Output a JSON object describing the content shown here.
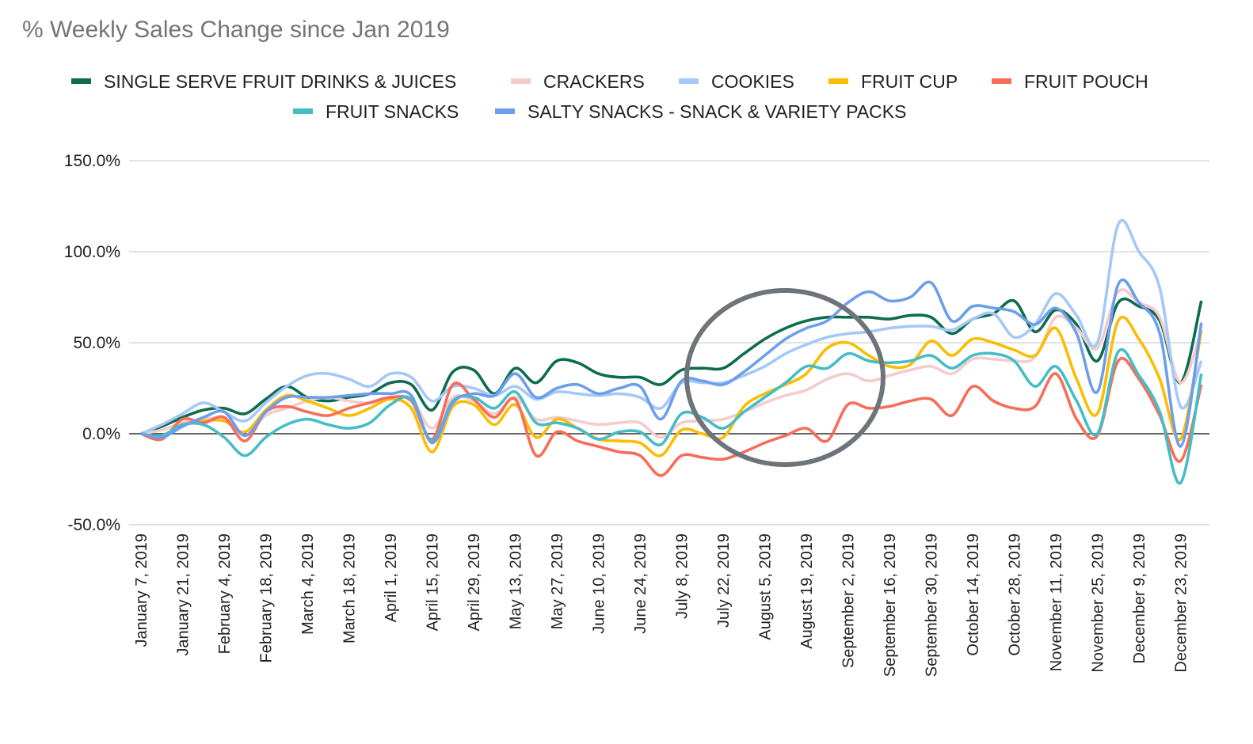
{
  "chart_data": {
    "type": "line",
    "title": "% Weekly Sales Change since Jan 2019",
    "xlabel": "",
    "ylabel": "",
    "ylim": [
      -50,
      150
    ],
    "y_ticks": [
      "150.0%",
      "100.0%",
      "50.0%",
      "0.0%",
      "-50.0%"
    ],
    "y_tick_values": [
      150,
      100,
      50,
      0,
      -50
    ],
    "grid": true,
    "legend_position": "top",
    "x": [
      "January 7, 2019",
      "January 14, 2019",
      "January 21, 2019",
      "January 28, 2019",
      "February 4, 2019",
      "February 11, 2019",
      "February 18, 2019",
      "February 25, 2019",
      "March 4, 2019",
      "March 11, 2019",
      "March 18, 2019",
      "March 25, 2019",
      "April 1, 2019",
      "April 8, 2019",
      "April 15, 2019",
      "April 22, 2019",
      "April 29, 2019",
      "May 6, 2019",
      "May 13, 2019",
      "May 20, 2019",
      "May 27, 2019",
      "June 3, 2019",
      "June 10, 2019",
      "June 17, 2019",
      "June 24, 2019",
      "July 1, 2019",
      "July 8, 2019",
      "July 15, 2019",
      "July 22, 2019",
      "July 29, 2019",
      "August 5, 2019",
      "August 12, 2019",
      "August 19, 2019",
      "August 26, 2019",
      "September 2, 2019",
      "September 9, 2019",
      "September 16, 2019",
      "September 23, 2019",
      "September 30, 2019",
      "October 7, 2019",
      "October 14, 2019",
      "October 21, 2019",
      "October 28, 2019",
      "November 4, 2019",
      "November 11, 2019",
      "November 18, 2019",
      "November 25, 2019",
      "December 2, 2019",
      "December 9, 2019",
      "December 16, 2019",
      "December 23, 2019",
      "December 30, 2019"
    ],
    "x_tick_labels": [
      "January 7, 2019",
      "January 21, 2019",
      "February 4, 2019",
      "February 18, 2019",
      "March 4, 2019",
      "March 18, 2019",
      "April 1, 2019",
      "April 15, 2019",
      "April 29, 2019",
      "May 13, 2019",
      "May 27, 2019",
      "June 10, 2019",
      "June 24, 2019",
      "July 8, 2019",
      "July 22, 2019",
      "August 5, 2019",
      "August 19, 2019",
      "September 2, 2019",
      "September 16, 2019",
      "September 30, 2019",
      "October 14, 2019",
      "October 28, 2019",
      "November 11, 2019",
      "November 25, 2019",
      "December 9, 2019",
      "December 23, 2019"
    ],
    "series": [
      {
        "name": "SINGLE SERVE FRUIT DRINKS & JUICES",
        "color": "#0d6b4e",
        "values": [
          0,
          4,
          9,
          13,
          14,
          11,
          19,
          26,
          20,
          18,
          20,
          22,
          28,
          27,
          13,
          34,
          35,
          22,
          36,
          28,
          40,
          39,
          33,
          31,
          31,
          27,
          35,
          36,
          36,
          44,
          52,
          58,
          62,
          64,
          64,
          64,
          63,
          65,
          64,
          55,
          63,
          66,
          73,
          56,
          68,
          60,
          40,
          72,
          70,
          62,
          28,
          73
        ]
      },
      {
        "name": "CRACKERS",
        "color": "#f4cccc",
        "values": [
          0,
          2,
          6,
          8,
          8,
          -1,
          10,
          14,
          18,
          20,
          18,
          17,
          20,
          19,
          3,
          20,
          18,
          11,
          20,
          8,
          9,
          7,
          5,
          6,
          6,
          -2,
          6,
          7,
          8,
          12,
          17,
          21,
          24,
          30,
          33,
          29,
          32,
          35,
          37,
          33,
          41,
          41,
          40,
          42,
          64,
          58,
          47,
          78,
          72,
          64,
          28,
          57
        ]
      },
      {
        "name": "COOKIES",
        "color": "#a4c8f8",
        "values": [
          0,
          5,
          11,
          17,
          12,
          7,
          17,
          26,
          32,
          33,
          30,
          26,
          33,
          31,
          18,
          26,
          25,
          21,
          26,
          19,
          23,
          22,
          21,
          22,
          20,
          14,
          28,
          28,
          28,
          32,
          37,
          44,
          49,
          53,
          55,
          56,
          58,
          59,
          59,
          57,
          63,
          66,
          53,
          60,
          77,
          65,
          50,
          115,
          100,
          80,
          15,
          40
        ]
      },
      {
        "name": "FRUIT CUP",
        "color": "#fbbc04",
        "values": [
          0,
          -1,
          5,
          7,
          7,
          1,
          13,
          21,
          18,
          14,
          10,
          14,
          19,
          14,
          -10,
          15,
          16,
          5,
          16,
          -2,
          8,
          3,
          -3,
          -4,
          -5,
          -12,
          2,
          0,
          -2,
          15,
          22,
          27,
          33,
          47,
          50,
          43,
          37,
          38,
          51,
          43,
          52,
          50,
          46,
          43,
          58,
          30,
          11,
          62,
          52,
          30,
          -3,
          57
        ]
      },
      {
        "name": "FRUIT POUCH",
        "color": "#f86d5a",
        "values": [
          0,
          -3,
          8,
          6,
          9,
          -4,
          12,
          15,
          12,
          10,
          14,
          17,
          20,
          18,
          -3,
          27,
          19,
          9,
          19,
          -12,
          1,
          -4,
          -7,
          -10,
          -12,
          -23,
          -12,
          -13,
          -14,
          -10,
          -5,
          -1,
          3,
          -4,
          16,
          14,
          15,
          18,
          19,
          10,
          26,
          18,
          14,
          15,
          33,
          8,
          -1,
          40,
          30,
          10,
          -15,
          27
        ]
      },
      {
        "name": "FRUIT SNACKS",
        "color": "#46bdc6",
        "values": [
          0,
          -1,
          5,
          5,
          -2,
          -12,
          -2,
          5,
          8,
          5,
          3,
          6,
          16,
          19,
          -4,
          18,
          20,
          14,
          23,
          6,
          6,
          3,
          -3,
          1,
          1,
          -6,
          11,
          9,
          3,
          12,
          20,
          28,
          37,
          36,
          44,
          40,
          39,
          40,
          43,
          36,
          43,
          44,
          40,
          26,
          37,
          18,
          0,
          45,
          32,
          12,
          -27,
          33
        ]
      },
      {
        "name": "SALTY SNACKS - SNACK & VARIETY PACKS",
        "color": "#6d9eeb",
        "values": [
          0,
          -2,
          4,
          9,
          12,
          -1,
          12,
          20,
          20,
          20,
          21,
          22,
          22,
          21,
          -5,
          17,
          22,
          21,
          33,
          20,
          25,
          27,
          22,
          25,
          26,
          8,
          29,
          29,
          27,
          34,
          43,
          52,
          58,
          62,
          72,
          78,
          73,
          75,
          83,
          62,
          70,
          69,
          67,
          60,
          69,
          55,
          23,
          82,
          72,
          55,
          -7,
          61
        ]
      }
    ],
    "annotation": {
      "shape": "ellipse",
      "color": "#6f737a"
    }
  }
}
